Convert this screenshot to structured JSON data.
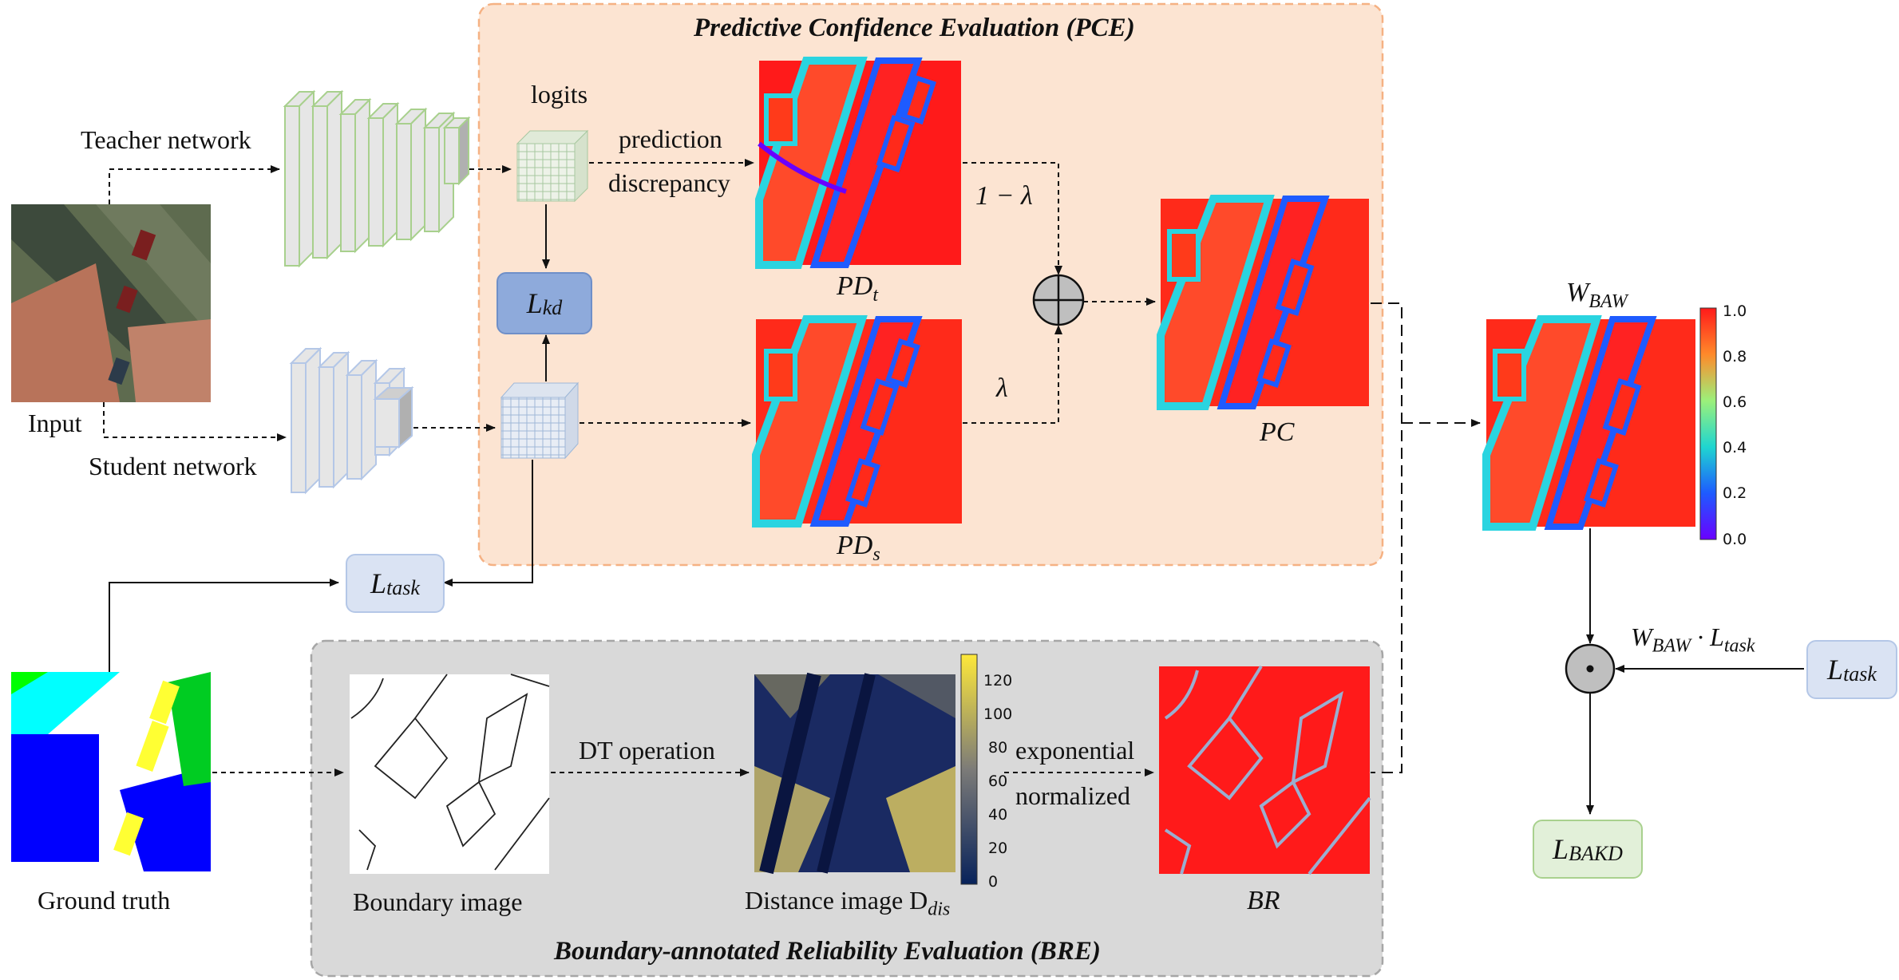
{
  "pce": {
    "title": "Predictive Confidence Evaluation (PCE)"
  },
  "bre": {
    "title": "Boundary-annotated Reliability Evaluation (BRE)"
  },
  "labels": {
    "teacher": "Teacher network",
    "student": "Student network",
    "input": "Input",
    "logits": "logits",
    "prediction": "prediction",
    "discrepancy": "discrepancy",
    "one_minus_lambda": "1 − λ",
    "lambda": "λ",
    "ground_truth": "Ground truth",
    "boundary_image": "Boundary image",
    "dt_operation": "DT operation",
    "distance_image": "Distance image D",
    "distance_image_sub": "dis",
    "exponential": "exponential",
    "normalized": "normalized",
    "pd_t": "PD",
    "pd_t_sub": "t",
    "pd_s": "PD",
    "pd_s_sub": "s",
    "pc": "PC",
    "br": "BR",
    "w_baw": "W",
    "w_baw_sub": "BAW",
    "weighted_loss": "W",
    "weighted_loss_sub": "BAW",
    "weighted_loss_mid": " · L",
    "weighted_loss_sub2": "task"
  },
  "boxes": {
    "l_kd": "L",
    "l_kd_sub": "kd",
    "l_task": "L",
    "l_task_sub": "task",
    "l_task_right": "L",
    "l_task_right_sub": "task",
    "l_bakd": "L",
    "l_bakd_sub": "BAKD"
  },
  "colorbar_confidence": {
    "ticks": [
      "1.0",
      "0.8",
      "0.6",
      "0.4",
      "0.2",
      "0.0"
    ]
  },
  "colorbar_distance": {
    "ticks": [
      "120",
      "100",
      "80",
      "60",
      "40",
      "20",
      "0"
    ]
  },
  "colors": {
    "pce_bg": "#fce4d2",
    "pce_border": "#f5b183",
    "bre_bg": "#d9d9d9",
    "bre_border": "#a6a6a6",
    "lkd_fill": "#8eaadb",
    "ltask_fill": "#dae3f3",
    "lbakd_fill": "#e2f0d9"
  }
}
